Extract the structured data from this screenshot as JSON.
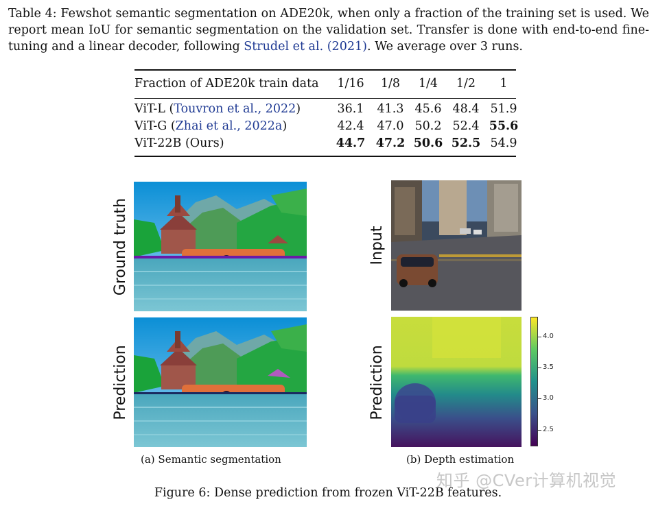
{
  "table_caption": {
    "prefix": "Table 4: Fewshot semantic segmentation on ADE20k, when only a fraction of the training set is used. We report mean IoU for semantic segmentation on the validation set. Transfer is done with end-to-end fine-tuning and a linear decoder, following ",
    "cite": "Strudel et al.",
    "cite_year": "(2021)",
    "suffix": ". We average over 3 runs."
  },
  "table": {
    "header": [
      "Fraction of ADE20k train data",
      "1/16",
      "1/8",
      "1/4",
      "1/2",
      "1"
    ],
    "rows": [
      {
        "model": "ViT-L",
        "cite": "Touvron et al., 2022",
        "values": [
          "36.1",
          "41.3",
          "45.6",
          "48.4",
          "51.9"
        ],
        "bold": [
          false,
          false,
          false,
          false,
          false
        ]
      },
      {
        "model": "ViT-G",
        "cite": "Zhai et al., 2022a",
        "values": [
          "42.4",
          "47.0",
          "50.2",
          "52.4",
          "55.6"
        ],
        "bold": [
          false,
          false,
          false,
          false,
          true
        ]
      },
      {
        "model": "ViT-22B",
        "cite": "Ours",
        "values": [
          "44.7",
          "47.2",
          "50.6",
          "52.5",
          "54.9"
        ],
        "bold": [
          true,
          true,
          true,
          true,
          false
        ]
      }
    ]
  },
  "figure": {
    "labels": {
      "ground_truth": "Ground truth",
      "prediction_left": "Prediction",
      "input": "Input",
      "prediction_right": "Prediction"
    },
    "subcaption_a": "(a)  Semantic segmentation",
    "subcaption_b": "(b)  Depth estimation",
    "caption": "Figure 6: Dense prediction from frozen ViT-22B features.",
    "colorbar_ticks": [
      "4.0",
      "3.5",
      "3.0",
      "2.5"
    ],
    "colormap": "viridis",
    "watermark": "知乎 @CVer计算机视觉"
  }
}
